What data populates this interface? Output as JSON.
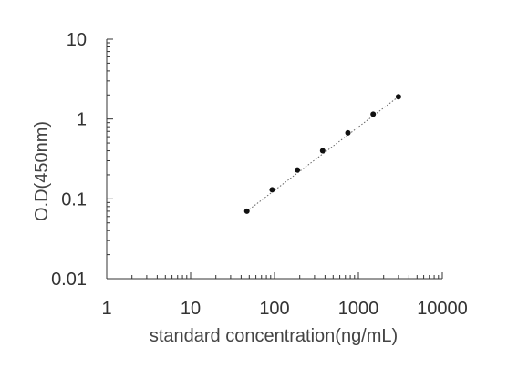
{
  "chart_data": {
    "type": "scatter",
    "title": "",
    "xlabel": "standard concentration(ng/mL)",
    "ylabel": "O.D(450nm)",
    "x_scale": "log",
    "y_scale": "log",
    "xlim": [
      1,
      10000
    ],
    "ylim": [
      0.01,
      10
    ],
    "x_ticks": [
      {
        "value": 1,
        "label": "1"
      },
      {
        "value": 10,
        "label": "10"
      },
      {
        "value": 100,
        "label": "100"
      },
      {
        "value": 1000,
        "label": "1000"
      },
      {
        "value": 10000,
        "label": "10000"
      }
    ],
    "y_ticks": [
      {
        "value": 0.01,
        "label": "0.01"
      },
      {
        "value": 0.1,
        "label": "0.1"
      },
      {
        "value": 1,
        "label": "1"
      },
      {
        "value": 10,
        "label": "10"
      }
    ],
    "grid": false,
    "legend": "none",
    "colors": {
      "axis": "#333333",
      "points": "#111111",
      "fit_line": "#666666"
    },
    "series": [
      {
        "x": [
          46.875,
          93.75,
          187.5,
          375,
          750,
          1500,
          3000
        ],
        "y": [
          0.07,
          0.13,
          0.23,
          0.4,
          0.67,
          1.15,
          1.9
        ]
      }
    ],
    "fit_line": {
      "style": "dotted",
      "x": [
        46.875,
        3000
      ],
      "y": [
        0.07,
        1.9
      ]
    }
  }
}
